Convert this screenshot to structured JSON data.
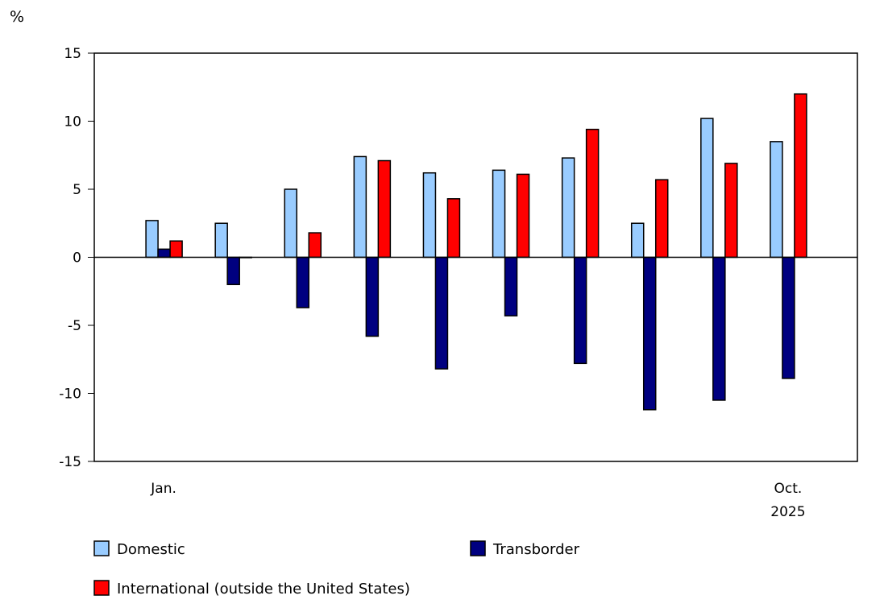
{
  "chart_data": {
    "type": "bar",
    "ylabel": "%",
    "ylim": [
      -15,
      15
    ],
    "yticks": [
      15,
      10,
      5,
      0,
      -5,
      -10,
      -15
    ],
    "yticklabels": [
      "15",
      "10",
      "5",
      "0",
      "-5",
      "-10",
      "-15"
    ],
    "categories": [
      "Jan.",
      "",
      "",
      "",
      "",
      "",
      "",
      "",
      "",
      "Oct."
    ],
    "xticklabels": [
      {
        "index": 0,
        "label": "Jan."
      },
      {
        "index": 9,
        "label": "Oct.",
        "sublabel": "2025"
      }
    ],
    "grid": false,
    "legend_placement": "bottom",
    "series": [
      {
        "name": "Domestic",
        "color": "#99ccff",
        "values": [
          2.7,
          2.5,
          5.0,
          7.4,
          6.2,
          6.4,
          7.3,
          2.5,
          10.2,
          8.5
        ]
      },
      {
        "name": "Transborder",
        "color": "#000080",
        "values": [
          0.6,
          -2.0,
          -3.7,
          -5.8,
          -8.2,
          -4.3,
          -7.8,
          -11.2,
          -10.5,
          -8.9
        ]
      },
      {
        "name": "International (outside the United States)",
        "color": "#ff0000",
        "values": [
          1.2,
          0.0,
          1.8,
          7.1,
          4.3,
          6.1,
          9.4,
          5.7,
          6.9,
          12.0
        ]
      }
    ]
  }
}
